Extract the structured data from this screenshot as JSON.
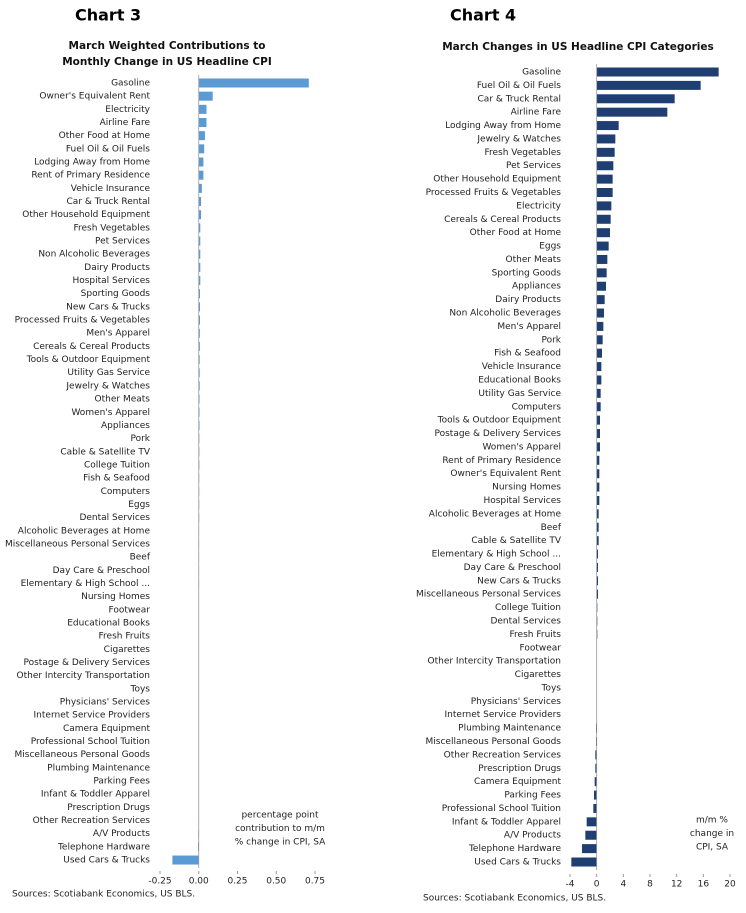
{
  "chart_data": [
    {
      "type": "bar",
      "orientation": "horizontal",
      "heading": "Chart 3",
      "title": [
        "March Weighted Contributions to",
        "Monthly Change in US Headline CPI"
      ],
      "categories": [
        "Gasoline",
        "Owner's Equivalent Rent",
        "Electricity",
        "Airline Fare",
        "Other Food at Home",
        "Fuel Oil & Oil Fuels",
        "Lodging Away from Home",
        "Rent of Primary Residence",
        "Vehicle Insurance",
        "Car & Truck Rental",
        "Other Household Equipment",
        "Fresh Vegetables",
        "Pet Services",
        "Non Alcoholic Beverages",
        "Dairy Products",
        "Hospital Services",
        "Sporting Goods",
        "New Cars & Trucks",
        "Processed Fruits & Vegetables",
        "Men's Apparel",
        "Cereals & Cereal Products",
        "Tools & Outdoor Equipment",
        "Utility Gas Service",
        "Jewelry & Watches",
        "Other Meats",
        "Women's Apparel",
        "Appliances",
        "Pork",
        "Cable & Satellite TV",
        "College Tuition",
        "Fish & Seafood",
        "Computers",
        "Eggs",
        "Dental Services",
        "Alcoholic Beverages at Home",
        "Miscellaneous Personal Services",
        "Beef",
        "Day Care & Preschool",
        "Elementary & High School ...",
        "Nursing Homes",
        "Footwear",
        "Educational Books",
        "Fresh Fruits",
        "Cigarettes",
        "Postage & Delivery Services",
        "Other Intercity Transportation",
        "Toys",
        "Physicians' Services",
        "Internet Service Providers",
        "Camera Equipment",
        "Professional School Tuition",
        "Miscellaneous Personal Goods",
        "Plumbing Maintenance",
        "Parking Fees",
        "Infant & Toddler Apparel",
        "Prescription Drugs",
        "Other Recreation Services",
        "A/V Products",
        "Telephone Hardware",
        "Used Cars & Trucks"
      ],
      "values": [
        0.71,
        0.09,
        0.05,
        0.05,
        0.04,
        0.035,
        0.03,
        0.03,
        0.02,
        0.015,
        0.015,
        0.01,
        0.01,
        0.01,
        0.01,
        0.01,
        0.008,
        0.008,
        0.008,
        0.007,
        0.007,
        0.006,
        0.006,
        0.006,
        0.005,
        0.005,
        0.005,
        0.004,
        0.004,
        0.004,
        0.003,
        0.003,
        0.003,
        0.003,
        0.002,
        0.002,
        0.002,
        0.002,
        0.002,
        0.001,
        0.001,
        0.001,
        0.001,
        0.001,
        0.001,
        0,
        0,
        0,
        0,
        0,
        0,
        -0.001,
        -0.001,
        -0.001,
        -0.001,
        -0.001,
        -0.002,
        -0.003,
        -0.005,
        -0.17
      ],
      "color": "#5b9bd5",
      "xlim": [
        -0.25,
        0.75
      ],
      "xticks": [
        -0.25,
        {
          "value": 0,
          "label": "0.00"
        },
        0.25,
        {
          "value": 0.5,
          "label": "0.50"
        },
        0.75
      ],
      "annotation": [
        "percentage point",
        "contribution to m/m",
        "% change in CPI, SA"
      ],
      "source": "Sources: Scotiabank Economics, US BLS."
    },
    {
      "type": "bar",
      "orientation": "horizontal",
      "heading": "Chart 4",
      "title": [
        "March Changes in US Headline CPI Categories"
      ],
      "categories": [
        "Gasoline",
        "Fuel Oil & Oil Fuels",
        "Car & Truck Rental",
        "Airline Fare",
        "Lodging Away from Home",
        "Jewelry & Watches",
        "Fresh Vegetables",
        "Pet Services",
        "Other Household Equipment",
        "Processed Fruits & Vegetables",
        "Electricity",
        "Cereals & Cereal Products",
        "Other Food at Home",
        "Eggs",
        "Other Meats",
        "Sporting Goods",
        "Appliances",
        "Dairy Products",
        "Non Alcoholic Beverages",
        "Men's Apparel",
        "Pork",
        "Fish & Seafood",
        "Vehicle Insurance",
        "Educational Books",
        "Utility Gas Service",
        "Computers",
        "Tools & Outdoor Equipment",
        "Postage & Delivery Services",
        "Women's Apparel",
        "Rent of Primary Residence",
        "Owner's Equivalent Rent",
        "Nursing Homes",
        "Hospital Services",
        "Alcoholic Beverages at Home",
        "Beef",
        "Cable & Satellite TV",
        "Elementary & High School ...",
        "Day Care & Preschool",
        "New Cars & Trucks",
        "Miscellaneous Personal Services",
        "College Tuition",
        "Dental Services",
        "Fresh Fruits",
        "Footwear",
        "Other Intercity Transportation",
        "Cigarettes",
        "Toys",
        "Physicians' Services",
        "Internet Service Providers",
        "Plumbing Maintenance",
        "Miscellaneous Personal Goods",
        "Other Recreation Services",
        "Prescription Drugs",
        "Camera Equipment",
        "Parking Fees",
        "Professional School Tuition",
        "Infant & Toddler Apparel",
        "A/V Products",
        "Telephone Hardware",
        "Used Cars & Trucks"
      ],
      "values": [
        18.3,
        15.6,
        11.7,
        10.6,
        3.3,
        2.8,
        2.7,
        2.5,
        2.4,
        2.4,
        2.2,
        2.1,
        2.0,
        1.8,
        1.6,
        1.5,
        1.4,
        1.2,
        1.1,
        1.0,
        0.9,
        0.8,
        0.7,
        0.7,
        0.6,
        0.6,
        0.5,
        0.5,
        0.5,
        0.4,
        0.4,
        0.4,
        0.4,
        0.3,
        0.3,
        0.3,
        0.2,
        0.2,
        0.2,
        0.2,
        0.1,
        0.1,
        0.1,
        0,
        0,
        0,
        0,
        0,
        0,
        -0.1,
        -0.1,
        -0.2,
        -0.2,
        -0.3,
        -0.4,
        -0.5,
        -1.5,
        -1.7,
        -2.2,
        -3.8
      ],
      "color": "#1f3f73",
      "xlim": [
        -4,
        20
      ],
      "xticks": [
        -4,
        0,
        4,
        8,
        12,
        16,
        20
      ],
      "annotation": [
        "m/m %",
        "change in",
        "CPI, SA"
      ],
      "source": "Sources: Scotiabank Economics, US BLS."
    }
  ]
}
